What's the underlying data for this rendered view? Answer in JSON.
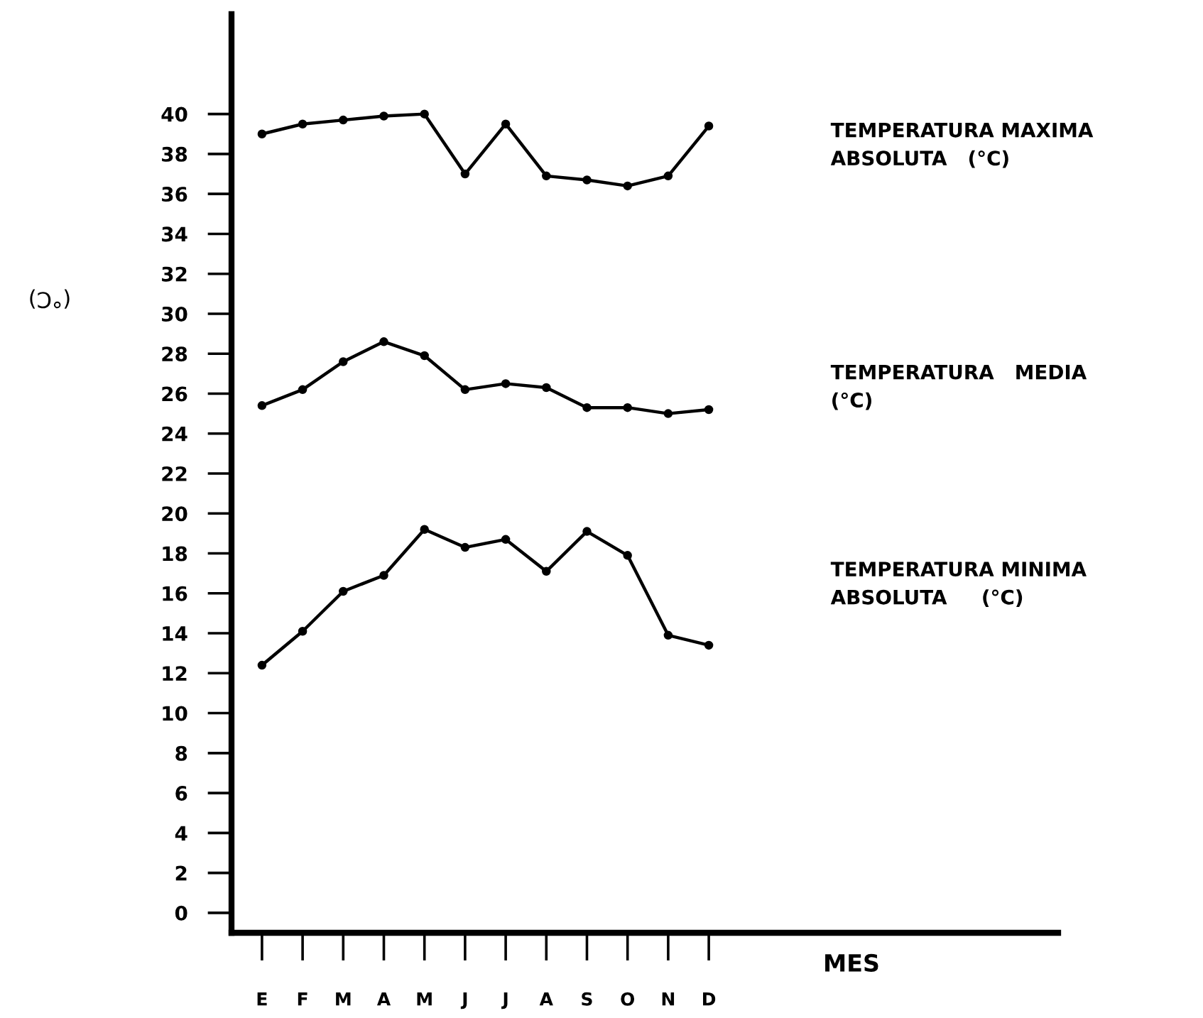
{
  "chart_data": {
    "type": "line",
    "xlabel": "MES",
    "ylabel": "(°C)",
    "categories": [
      "E",
      "F",
      "M",
      "A",
      "M",
      "J",
      "J",
      "A",
      "S",
      "O",
      "N",
      "D"
    ],
    "series": [
      {
        "name": "TEMPERATURA MAXIMA\nABSOLUTA   (°C)",
        "color": "#000000",
        "values": [
          39.0,
          39.5,
          39.7,
          39.9,
          40.0,
          37.0,
          39.5,
          36.9,
          36.7,
          36.4,
          36.9,
          39.4
        ]
      },
      {
        "name": "TEMPERATURA   MEDIA\n(°C)",
        "color": "#000000",
        "values": [
          25.4,
          26.2,
          27.6,
          28.6,
          27.9,
          26.2,
          26.5,
          26.3,
          25.3,
          25.3,
          25.0,
          25.2
        ]
      },
      {
        "name": "TEMPERATURA MINIMA\nABSOLUTA     (°C)",
        "color": "#000000",
        "values": [
          12.4,
          14.1,
          16.1,
          16.9,
          19.2,
          18.3,
          18.7,
          17.1,
          19.1,
          17.9,
          13.9,
          13.4
        ]
      }
    ],
    "ylim": [
      -1,
      45
    ],
    "yticks": [
      0,
      2,
      4,
      6,
      8,
      10,
      12,
      14,
      16,
      18,
      20,
      22,
      24,
      26,
      28,
      30,
      32,
      34,
      36,
      38,
      40
    ],
    "grid": false,
    "legend": false,
    "marker": "circle",
    "line_style": "solid"
  }
}
